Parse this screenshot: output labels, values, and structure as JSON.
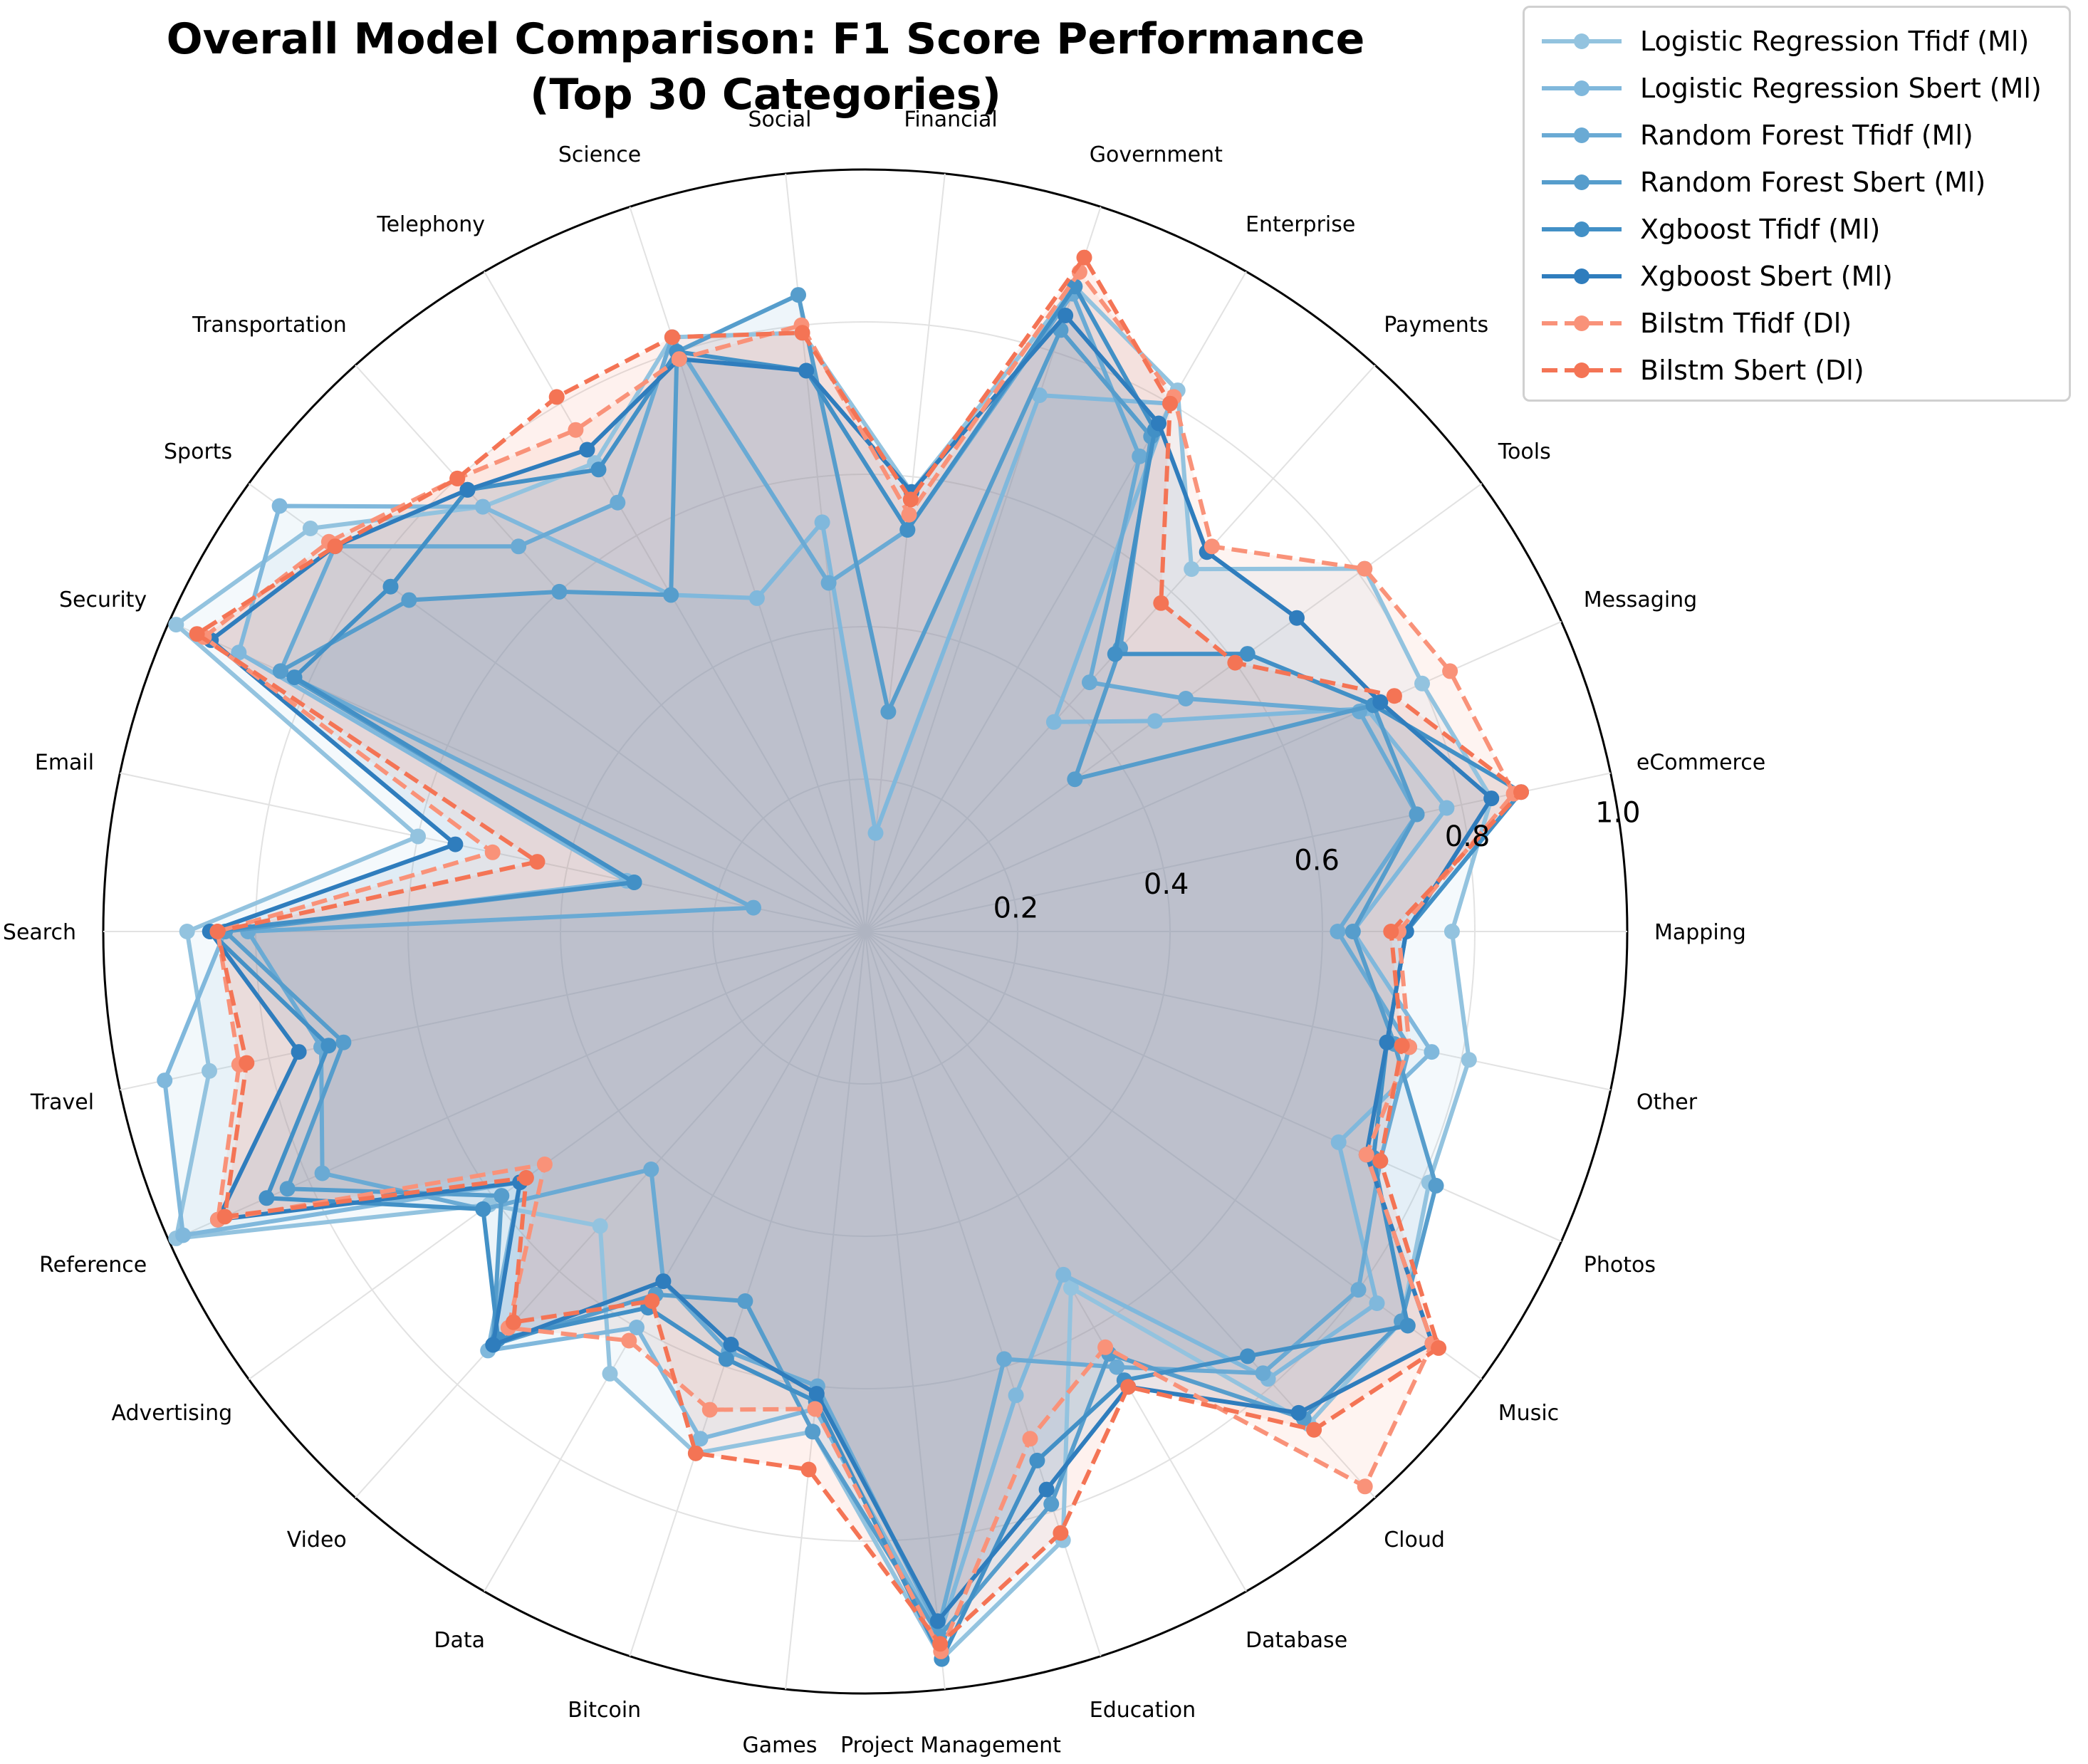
{
  "chart_data": {
    "type": "radar",
    "title": [
      "Overall Model Comparison: F1 Score Performance",
      "(Top 30 Categories)"
    ],
    "categories": [
      "Mapping",
      "eCommerce",
      "Messaging",
      "Tools",
      "Payments",
      "Enterprise",
      "Government",
      "Financial",
      "Social",
      "Science",
      "Telephony",
      "Transportation",
      "Sports",
      "Security",
      "Email",
      "Search",
      "Travel",
      "Reference",
      "Advertising",
      "Video",
      "Data",
      "Bitcoin",
      "Games",
      "Project Management",
      "Education",
      "Database",
      "Cloud",
      "Music",
      "Photos",
      "Other"
    ],
    "rlim": [
      0,
      1.0
    ],
    "rticks": [
      "0.2",
      "0.4",
      "0.6",
      "0.8",
      "1.0"
    ],
    "rtick_values": [
      0.2,
      0.4,
      0.6,
      0.8,
      1.0
    ],
    "grid": true,
    "legend_position": "top-right",
    "series": [
      {
        "name": "Logistic Regression Tfidf (Ml)",
        "color": "#93c3df",
        "dash": false,
        "values": [
          0.77,
          0.84,
          0.8,
          0.81,
          0.64,
          0.82,
          0.89,
          0.58,
          0.79,
          0.82,
          0.71,
          0.75,
          0.9,
          0.99,
          0.6,
          0.89,
          0.88,
          0.99,
          0.61,
          0.52,
          0.67,
          0.72,
          0.66,
          0.96,
          0.84,
          0.54,
          0.87,
          0.87,
          0.81,
          0.81
        ]
      },
      {
        "name": "Logistic Regression Sbert (Ml)",
        "color": "#80b8dc",
        "dash": false,
        "values": [
          0.64,
          0.78,
          0.72,
          0.47,
          0.37,
          0.8,
          0.74,
          0.13,
          0.54,
          0.46,
          0.51,
          0.75,
          0.95,
          0.9,
          0.32,
          0.84,
          0.94,
          0.98,
          0.56,
          0.74,
          0.6,
          0.7,
          0.63,
          0.93,
          0.64,
          0.52,
          0.79,
          0.83,
          0.68,
          0.76
        ]
      },
      {
        "name": "Random Forest Tfidf (Ml)",
        "color": "#6aaad4",
        "dash": false,
        "values": [
          0.62,
          0.74,
          0.71,
          0.52,
          0.44,
          0.72,
          0.88,
          0.53,
          0.46,
          0.82,
          0.65,
          0.68,
          0.86,
          0.84,
          0.15,
          0.81,
          0.73,
          0.78,
          0.62,
          0.42,
          0.53,
          0.58,
          0.6,
          0.92,
          0.59,
          0.66,
          0.78,
          0.8,
          0.74,
          0.73
        ]
      },
      {
        "name": "Random Forest Sbert (Ml)",
        "color": "#569dcc",
        "dash": false,
        "values": [
          0.64,
          0.74,
          0.73,
          0.34,
          0.5,
          0.75,
          0.83,
          0.29,
          0.84,
          0.8,
          0.51,
          0.6,
          0.74,
          0.84,
          0.31,
          0.84,
          0.7,
          0.83,
          0.59,
          0.73,
          0.55,
          0.51,
          0.66,
          0.93,
          0.79,
          0.64,
          0.86,
          0.87,
          0.82,
          0.71
        ]
      },
      {
        "name": "Xgboost Tfidf (Ml)",
        "color": "#4290c6",
        "dash": false,
        "values": [
          0.71,
          0.88,
          0.73,
          0.62,
          0.49,
          0.76,
          0.89,
          0.53,
          0.74,
          0.8,
          0.7,
          0.78,
          0.77,
          0.82,
          0.31,
          0.86,
          0.72,
          0.86,
          0.62,
          0.72,
          0.57,
          0.59,
          0.62,
          0.96,
          0.73,
          0.68,
          0.75,
          0.88,
          0.73,
          0.7
        ]
      },
      {
        "name": "Xgboost Sbert (Ml)",
        "color": "#2f7dbd",
        "dash": false,
        "values": [
          0.71,
          0.84,
          0.74,
          0.7,
          0.67,
          0.77,
          0.85,
          0.58,
          0.74,
          0.79,
          0.73,
          0.78,
          0.86,
          0.94,
          0.55,
          0.86,
          0.76,
          0.93,
          0.56,
          0.73,
          0.53,
          0.57,
          0.61,
          0.91,
          0.77,
          0.69,
          0.85,
          0.92,
          0.72,
          0.7
        ]
      },
      {
        "name": "Bilstm Tfidf (Dl)",
        "color": "#f99279",
        "dash": true,
        "values": [
          0.7,
          0.87,
          0.84,
          0.81,
          0.68,
          0.81,
          0.91,
          0.55,
          0.8,
          0.79,
          0.76,
          0.8,
          0.87,
          0.95,
          0.5,
          0.85,
          0.84,
          0.93,
          0.52,
          0.7,
          0.62,
          0.66,
          0.63,
          0.95,
          0.7,
          0.63,
          0.98,
          0.92,
          0.72,
          0.73
        ]
      },
      {
        "name": "Bilstm Sbert (Dl)",
        "color": "#f47455",
        "dash": true,
        "values": [
          0.69,
          0.88,
          0.76,
          0.6,
          0.58,
          0.8,
          0.93,
          0.57,
          0.79,
          0.82,
          0.81,
          0.8,
          0.86,
          0.96,
          0.44,
          0.85,
          0.83,
          0.92,
          0.55,
          0.69,
          0.56,
          0.72,
          0.71,
          0.94,
          0.83,
          0.69,
          0.88,
          0.93,
          0.74,
          0.72
        ]
      }
    ]
  }
}
